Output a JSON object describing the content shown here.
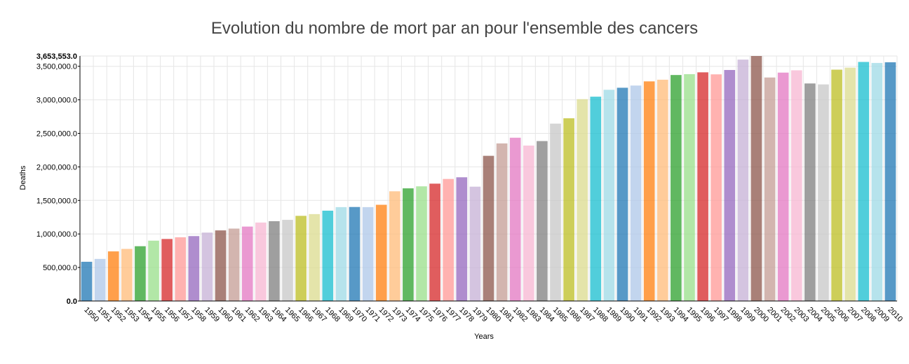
{
  "chart_data": {
    "type": "bar",
    "title": "Evolution du nombre de mort par an pour l'ensemble des cancers",
    "xlabel": "Years",
    "ylabel": "Deaths",
    "ylim": [
      0,
      3653553
    ],
    "y_ticks": [
      0,
      500000,
      1000000,
      1500000,
      2000000,
      2500000,
      3000000,
      3500000
    ],
    "y_tick_labels": [
      "0.0",
      "500,000.0",
      "1,000,000.0",
      "1,500,000.0",
      "2,000,000.0",
      "2,500,000.0",
      "3,000,000.0",
      "3,500,000.0"
    ],
    "y_max_label": "3,653,553.0",
    "grid": true,
    "legend": "none",
    "categories": [
      "1950",
      "1951",
      "1952",
      "1953",
      "1954",
      "1955",
      "1956",
      "1957",
      "1958",
      "1959",
      "1960",
      "1961",
      "1962",
      "1963",
      "1964",
      "1965",
      "1966",
      "1967",
      "1968",
      "1969",
      "1970",
      "1971",
      "1972",
      "1973",
      "1974",
      "1975",
      "1976",
      "1977",
      "1978",
      "1979",
      "1980",
      "1981",
      "1982",
      "1983",
      "1984",
      "1985",
      "1986",
      "1987",
      "1988",
      "1989",
      "1990",
      "1991",
      "1992",
      "1993",
      "1994",
      "1995",
      "1996",
      "1997",
      "1998",
      "1999",
      "2000",
      "2001",
      "2002",
      "2003",
      "2004",
      "2005",
      "2006",
      "2007",
      "2008",
      "2009",
      "2010"
    ],
    "values": [
      585000,
      628000,
      740000,
      777000,
      817000,
      900000,
      925000,
      950000,
      968000,
      1020000,
      1053000,
      1080000,
      1110000,
      1170000,
      1190000,
      1210000,
      1270000,
      1296000,
      1347000,
      1400000,
      1402000,
      1400000,
      1435000,
      1636000,
      1680000,
      1710000,
      1750000,
      1820000,
      1845000,
      1705000,
      2165000,
      2350000,
      2435000,
      2318000,
      2385000,
      2645000,
      2725000,
      3010000,
      3047000,
      3150000,
      3180000,
      3213000,
      3275000,
      3300000,
      3370000,
      3383000,
      3410000,
      3380000,
      3445000,
      3600000,
      3653553,
      3333000,
      3406000,
      3440000,
      3244000,
      3230000,
      3450000,
      3480000,
      3565000,
      3550000,
      3560000
    ],
    "colors": [
      "#1f77b4",
      "#aec7e8",
      "#ff7f0e",
      "#ffbb78",
      "#2ca02c",
      "#98df8a",
      "#d62728",
      "#ff9896",
      "#9467bd",
      "#c5b0d5",
      "#8c564b",
      "#c49c94",
      "#e377c2",
      "#f7b6d2",
      "#7f7f7f",
      "#c7c7c7",
      "#bcbd22",
      "#dbdb8d",
      "#17becf",
      "#9edae5"
    ]
  }
}
